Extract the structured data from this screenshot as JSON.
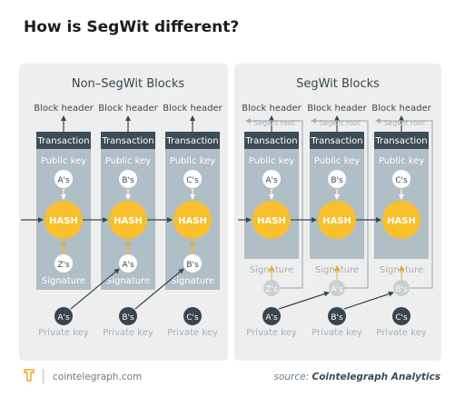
{
  "title": "How is SegWit different?",
  "panels": {
    "non_segwit": {
      "heading": "Non–SegWit Blocks",
      "columns": [
        {
          "block_header": "Block header",
          "transaction": "Transaction",
          "public_key": "Public key",
          "input_node": "A's",
          "hash": "HASH",
          "sig_node": "Z's",
          "signature": "Signature",
          "priv_node": "A's",
          "private_key": "Private key"
        },
        {
          "block_header": "Block header",
          "transaction": "Transaction",
          "public_key": "Public key",
          "input_node": "B's",
          "hash": "HASH",
          "sig_node": "A's",
          "signature": "Signature",
          "priv_node": "B's",
          "private_key": "Private key"
        },
        {
          "block_header": "Block header",
          "transaction": "Transaction",
          "public_key": "Public key",
          "input_node": "C's",
          "hash": "HASH",
          "sig_node": "B's",
          "signature": "Signature",
          "priv_node": "C's",
          "private_key": "Private key"
        }
      ]
    },
    "segwit": {
      "heading": "SegWit Blocks",
      "columns": [
        {
          "block_header": "Block header",
          "segwit_root": "Segwit root",
          "transaction": "Transaction",
          "public_key": "Public key",
          "input_node": "A's",
          "hash": "HASH",
          "sig_node": "Z's",
          "signature": "Signature",
          "priv_node": "A's",
          "private_key": "Private key"
        },
        {
          "block_header": "Block header",
          "segwit_root": "Segwit root",
          "transaction": "Transaction",
          "public_key": "Public key",
          "input_node": "B's",
          "hash": "HASH",
          "sig_node": "A's",
          "signature": "Signature",
          "priv_node": "B's",
          "private_key": "Private key"
        },
        {
          "block_header": "Block header",
          "segwit_root": "Segwit root",
          "transaction": "Transaction",
          "public_key": "Public key",
          "input_node": "C's",
          "hash": "HASH",
          "sig_node": "B's",
          "signature": "Signature",
          "priv_node": "C's",
          "private_key": "Private key"
        }
      ]
    }
  },
  "footer": {
    "site": "cointelegraph.com",
    "source_prefix": "source: ",
    "source_name": "Cointelegraph Analytics"
  },
  "colors": {
    "panel_bg": "#eeeeee",
    "column_bg": "#b0bec5",
    "column_header": "#3c4d58",
    "hash": "#f9bf2c",
    "dark_node": "#37474f",
    "muted_text": "#a6b1b8",
    "label_text": "#37474f",
    "sig_bg": "#c6d0d5"
  }
}
